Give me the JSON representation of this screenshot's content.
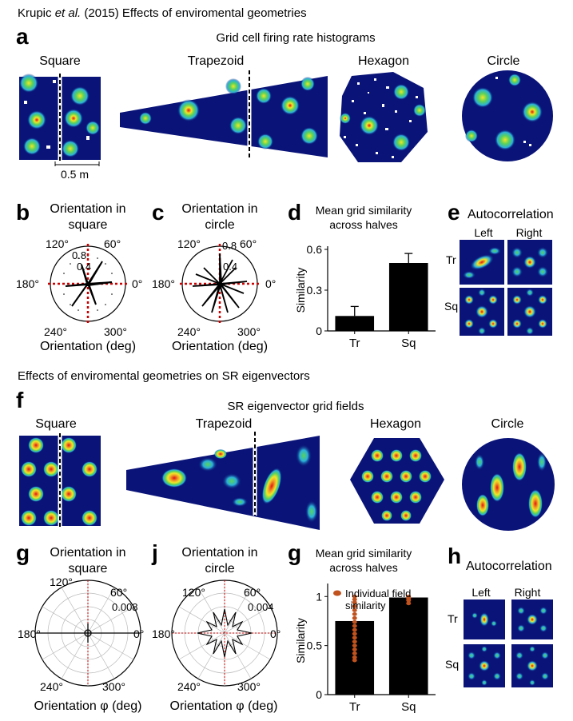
{
  "figure_title": "Krupic et al. (2015) Effects of enviromental geometries",
  "figure_title_parts": {
    "author": "Krupic ",
    "etal": "et al.",
    "rest": " (2015) Effects of enviromental geometries"
  },
  "section2_title": "Effects of enviromental geometries on SR eigenvectors",
  "colors": {
    "map_bg": "#0a1478",
    "map_dark": "#000a5a",
    "field_cyan": "#2ab0d8",
    "field_green": "#5ad25a",
    "field_yellow": "#f0e628",
    "field_red": "#e01414",
    "bar": "#000000",
    "individual_dots": "#c0521e",
    "dotted_axes": "#cc0000"
  },
  "panel_a": {
    "letter": "a",
    "heading": "Grid cell firing rate histograms",
    "envs": [
      "Square",
      "Trapezoid",
      "Hexagon",
      "Circle"
    ],
    "scale_bar": "0.5 m"
  },
  "panel_b": {
    "letter": "b",
    "title_line1": "Orientation in",
    "title_line2": "square",
    "xlabel": "Orientation (deg)",
    "angle_labels": [
      "120°",
      "60°",
      "180°",
      "0°",
      "240°",
      "300°"
    ],
    "radial_labels": [
      "0.8",
      "0.4"
    ]
  },
  "panel_c": {
    "letter": "c",
    "title_line1": "Orientation in",
    "title_line2": "circle",
    "xlabel": "Orientation (deg)",
    "angle_labels": [
      "120°",
      "60°",
      "180°",
      "0°",
      "240°",
      "300°"
    ],
    "radial_labels": [
      "0.8",
      "0.4"
    ]
  },
  "chart_data": [
    {
      "type": "bar",
      "panel": "d",
      "title": "Mean grid similarity across halves",
      "title_line1": "Mean grid similarity",
      "title_line2": "across halves",
      "ylabel": "Similarity",
      "categories": [
        "Tr",
        "Sq"
      ],
      "values": [
        0.11,
        0.5
      ],
      "errors": [
        0.07,
        0.07
      ],
      "ylim": [
        0,
        0.6
      ],
      "yticks": [
        "0",
        "0.3",
        "0.6"
      ]
    },
    {
      "type": "bar",
      "panel": "g",
      "title": "Mean grid similarity across halves",
      "title_line1": "Mean grid similarity",
      "title_line2": "across halves",
      "ylabel": "Similarity",
      "categories": [
        "Tr",
        "Sq"
      ],
      "values": [
        0.75,
        0.99
      ],
      "ylim": [
        0,
        1.1
      ],
      "yticks": [
        "0",
        "0.5",
        "1"
      ],
      "legend": "Individual field similarity",
      "legend_line1": "Individual field",
      "legend_line2": "similarity",
      "individual_points": [
        [
          1.0,
          0.97,
          0.94,
          0.9,
          0.86,
          0.82,
          0.78,
          0.74,
          0.7,
          0.66,
          0.62,
          0.58,
          0.54,
          0.5,
          0.46,
          0.42,
          0.38,
          0.35
        ],
        [
          1.0,
          0.98,
          0.96,
          0.93
        ]
      ]
    }
  ],
  "panel_e": {
    "letter": "e",
    "title": "Autocorrelation",
    "col_labels": [
      "Left",
      "Right"
    ],
    "row_labels": [
      "Tr",
      "Sq"
    ]
  },
  "panel_f": {
    "letter": "f",
    "heading": "SR eigenvector grid fields",
    "envs": [
      "Square",
      "Trapezoid",
      "Hexagon",
      "Circle"
    ]
  },
  "panel_g_polar": {
    "letter": "g",
    "title_line1": "Orientation in",
    "title_line2": "square",
    "xlabel": "Orientation φ (deg)",
    "angle_labels": [
      "120°",
      "60°",
      "180°",
      "0°",
      "240°",
      "300°"
    ],
    "radial_label": "0.008"
  },
  "panel_j": {
    "letter": "j",
    "title_line1": "Orientation in",
    "title_line2": "circle",
    "xlabel": "Orientation φ (deg)",
    "angle_labels": [
      "120°",
      "60°",
      "180°",
      "0°",
      "240°",
      "300°"
    ],
    "radial_label": "0.004"
  },
  "panel_g_bar_letter": "g",
  "panel_h": {
    "letter": "h",
    "title": "Autocorrelation",
    "col_labels": [
      "Left",
      "Right"
    ],
    "row_labels": [
      "Tr",
      "Sq"
    ]
  }
}
